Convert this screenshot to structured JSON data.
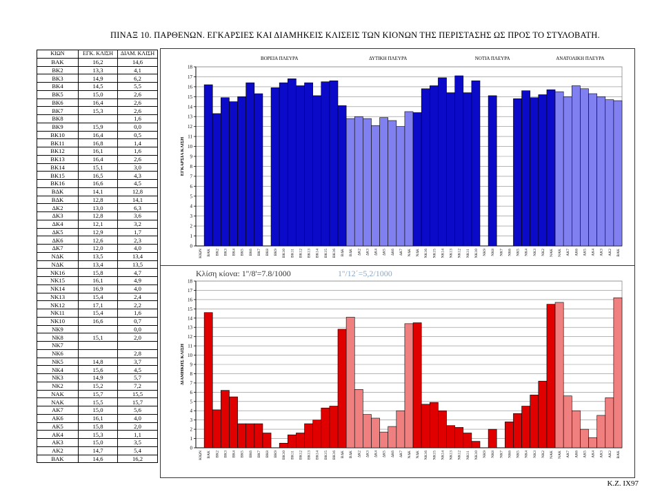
{
  "title": "ΠΙΝΑΞ 10. ΠΑΡΘΕΝΩΝ. ΕΓΚΑΡΣΙΕΣ ΚΑΙ ΔΙΑΜΗΚΕΙΣ ΚΛΙΣΕΙΣ ΤΩΝ ΚΙΟΝΩΝ ΤΗΣ ΠΕΡΙΣΤΑΣΗΣ ΩΣ ΠΡΟΣ ΤΟ ΣΤΥΛΟΒΑΤΗ.",
  "footer": "K.Z. IX97",
  "table": {
    "headers": [
      "ΚΙΩΝ",
      "ΕΓΚ. ΚΛΙΣΗ",
      "ΔΙΑΜ. ΚΛΙΣΗ"
    ],
    "rows": [
      [
        "ΒΑΚ",
        "16,2",
        "14,6"
      ],
      [
        "ΒΚ2",
        "13,3",
        "4,1"
      ],
      [
        "ΒΚ3",
        "14,9",
        "6,2"
      ],
      [
        "ΒΚ4",
        "14,5",
        "5,5"
      ],
      [
        "ΒΚ5",
        "15,0",
        "2,6"
      ],
      [
        "ΒΚ6",
        "16,4",
        "2,6"
      ],
      [
        "ΒΚ7",
        "15,3",
        "2,6"
      ],
      [
        "ΒΚ8",
        "",
        "1,6"
      ],
      [
        "ΒΚ9",
        "15,9",
        "0,0"
      ],
      [
        "ΒΚ10",
        "16,4",
        "0,5"
      ],
      [
        "ΒΚ11",
        "16,8",
        "1,4"
      ],
      [
        "ΒΚ12",
        "16,1",
        "1,6"
      ],
      [
        "ΒΚ13",
        "16,4",
        "2,6"
      ],
      [
        "ΒΚ14",
        "15,1",
        "3,0"
      ],
      [
        "ΒΚ15",
        "16,5",
        "4,3"
      ],
      [
        "ΒΚ16",
        "16,6",
        "4,5"
      ],
      [
        "ΒΔΚ",
        "14,1",
        "12,8"
      ],
      [
        "ΒΔΚ",
        "12,8",
        "14,1"
      ],
      [
        "ΔΚ2",
        "13,0",
        "6,3"
      ],
      [
        "ΔΚ3",
        "12,8",
        "3,6"
      ],
      [
        "ΔΚ4",
        "12,1",
        "3,2"
      ],
      [
        "ΔΚ5",
        "12,9",
        "1,7"
      ],
      [
        "ΔΚ6",
        "12,6",
        "2,3"
      ],
      [
        "ΔΚ7",
        "12,0",
        "4,0"
      ],
      [
        "ΝΔΚ",
        "13,5",
        "13,4"
      ],
      [
        "ΝΔΚ",
        "13,4",
        "13,5"
      ],
      [
        "ΝΚ16",
        "15,8",
        "4,7"
      ],
      [
        "ΝΚ15",
        "16,1",
        "4,9"
      ],
      [
        "ΝΚ14",
        "16,9",
        "4,0"
      ],
      [
        "ΝΚ13",
        "15,4",
        "2,4"
      ],
      [
        "ΝΚ12",
        "17,1",
        "2,2"
      ],
      [
        "ΝΚ11",
        "15,4",
        "1,6"
      ],
      [
        "ΝΚ10",
        "16,6",
        "0,7"
      ],
      [
        "ΝΚ9",
        "",
        "0,0"
      ],
      [
        "ΝΚ8",
        "15,1",
        "2,0"
      ],
      [
        "ΝΚ7",
        "",
        ""
      ],
      [
        "ΝΚ6",
        "",
        "2,8"
      ],
      [
        "ΝΚ5",
        "14,8",
        "3,7"
      ],
      [
        "ΝΚ4",
        "15,6",
        "4,5"
      ],
      [
        "ΝΚ3",
        "14,9",
        "5,7"
      ],
      [
        "ΝΚ2",
        "15,2",
        "7,2"
      ],
      [
        "ΝΑΚ",
        "15,7",
        "15,5"
      ],
      [
        "ΝΑΚ",
        "15,5",
        "15,7"
      ],
      [
        "ΑΚ7",
        "15,0",
        "5,6"
      ],
      [
        "ΑΚ6",
        "16,1",
        "4,0"
      ],
      [
        "ΑΚ5",
        "15,8",
        "2,0"
      ],
      [
        "ΑΚ4",
        "15,3",
        "1,1"
      ],
      [
        "ΑΚ3",
        "15,0",
        "3,5"
      ],
      [
        "ΑΚ2",
        "14,7",
        "5,4"
      ],
      [
        "ΒΑΚ",
        "14,6",
        "16,2"
      ]
    ]
  },
  "chart_data": [
    {
      "type": "bar",
      "ylabel": "ΕΓΚΑΡΣΙΑ ΚΛΙΣΗ",
      "ylim": [
        0,
        18
      ],
      "yticks": [
        0,
        1,
        2,
        3,
        4,
        5,
        6,
        7,
        8,
        9,
        10,
        11,
        12,
        13,
        14,
        15,
        16,
        17,
        18
      ],
      "grid": true,
      "section_labels": [
        "ΒΟΡΕΙΑ ΠΛΕΥΡΑ",
        "ΔΥΤΙΚΗ ΠΛΕΥΡΑ",
        "ΝΟΤΙΑ ΠΛΕΥΡΑ",
        "ΑΝΑΤΟΛΙΚΗ ΠΛΕΥΡΑ"
      ],
      "categories": [
        "ΚΙΩΝ",
        "ΒΑΚ",
        "ΒΚ2",
        "ΒΚ3",
        "ΒΚ4",
        "ΒΚ5",
        "ΒΚ6",
        "ΒΚ7",
        "ΒΚ8",
        "ΒΚ9",
        "ΒΚ10",
        "ΒΚ11",
        "ΒΚ12",
        "ΒΚ13",
        "ΒΚ14",
        "ΒΚ15",
        "ΒΚ16",
        "ΒΔΚ",
        "ΒΔΚ",
        "ΔΚ2",
        "ΔΚ3",
        "ΔΚ4",
        "ΔΚ5",
        "ΔΚ6",
        "ΔΚ7",
        "ΝΔΚ",
        "ΝΔΚ",
        "ΝΚ16",
        "ΝΚ15",
        "ΝΚ14",
        "ΝΚ13",
        "ΝΚ12",
        "ΝΚ11",
        "ΝΚ10",
        "ΝΚ9",
        "ΝΚ8",
        "ΝΚ7",
        "ΝΚ6",
        "ΝΚ5",
        "ΝΚ4",
        "ΝΚ3",
        "ΝΚ2",
        "ΝΑΚ",
        "ΝΑΚ",
        "ΑΚ7",
        "ΑΚ6",
        "ΑΚ5",
        "ΑΚ4",
        "ΑΚ3",
        "ΑΚ2",
        "ΒΑΚ"
      ],
      "values": [
        null,
        16.2,
        13.3,
        14.9,
        14.5,
        15.0,
        16.4,
        15.3,
        null,
        15.9,
        16.4,
        16.8,
        16.1,
        16.4,
        15.1,
        16.5,
        16.6,
        14.1,
        12.8,
        13.0,
        12.8,
        12.1,
        12.9,
        12.6,
        12.0,
        13.5,
        13.4,
        15.8,
        16.1,
        16.9,
        15.4,
        17.1,
        15.4,
        16.6,
        null,
        15.1,
        null,
        null,
        14.8,
        15.6,
        14.9,
        15.2,
        15.7,
        15.5,
        15.0,
        16.1,
        15.8,
        15.3,
        15.0,
        14.7,
        14.6
      ],
      "light": [
        false,
        false,
        false,
        false,
        false,
        false,
        false,
        false,
        false,
        false,
        false,
        false,
        false,
        false,
        false,
        false,
        false,
        false,
        true,
        true,
        true,
        true,
        true,
        true,
        true,
        true,
        false,
        false,
        false,
        false,
        false,
        false,
        false,
        false,
        false,
        false,
        false,
        false,
        false,
        false,
        false,
        false,
        false,
        true,
        true,
        true,
        true,
        true,
        true,
        true,
        true
      ],
      "colors": {
        "dark": "#0a0ac8",
        "light": "#8080f0"
      }
    },
    {
      "type": "bar",
      "ylabel": "ΔΙΑΜΗΚΗΣ ΚΛΙΣΗ",
      "annotation": "Κλίση κίονα: 1''/8'=7.8/1000",
      "annotation2": "1''/12΄=5,2/1000",
      "ylim": [
        0,
        18
      ],
      "yticks": [
        0,
        1,
        2,
        3,
        4,
        5,
        6,
        7,
        8,
        9,
        10,
        11,
        12,
        13,
        14,
        15,
        16,
        17,
        18
      ],
      "grid": true,
      "categories": [
        "ΚΙΩΝ",
        "ΒΑΚ",
        "ΒΚ2",
        "ΒΚ3",
        "ΒΚ4",
        "ΒΚ5",
        "ΒΚ6",
        "ΒΚ7",
        "ΒΚ8",
        "ΒΚ9",
        "ΒΚ10",
        "ΒΚ11",
        "ΒΚ12",
        "ΒΚ13",
        "ΒΚ14",
        "ΒΚ15",
        "ΒΚ16",
        "ΒΔΚ",
        "ΒΔΚ",
        "ΔΚ2",
        "ΔΚ3",
        "ΔΚ4",
        "ΔΚ5",
        "ΔΚ6",
        "ΔΚ7",
        "ΝΔΚ",
        "ΝΔΚ",
        "ΝΚ16",
        "ΝΚ15",
        "ΝΚ14",
        "ΝΚ13",
        "ΝΚ12",
        "ΝΚ11",
        "ΝΚ10",
        "ΝΚ9",
        "ΝΚ8",
        "ΝΚ7",
        "ΝΚ6",
        "ΝΚ5",
        "ΝΚ4",
        "ΝΚ3",
        "ΝΚ2",
        "ΝΑΚ",
        "ΝΑΚ",
        "ΑΚ7",
        "ΑΚ6",
        "ΑΚ5",
        "ΑΚ4",
        "ΑΚ3",
        "ΑΚ2",
        "ΒΑΚ"
      ],
      "values": [
        null,
        14.6,
        4.1,
        6.2,
        5.5,
        2.6,
        2.6,
        2.6,
        1.6,
        0.0,
        0.5,
        1.4,
        1.6,
        2.6,
        3.0,
        4.3,
        4.5,
        12.8,
        14.1,
        6.3,
        3.6,
        3.2,
        1.7,
        2.3,
        4.0,
        13.4,
        13.5,
        4.7,
        4.9,
        4.0,
        2.4,
        2.2,
        1.6,
        0.7,
        0.0,
        2.0,
        null,
        2.8,
        3.7,
        4.5,
        5.7,
        7.2,
        15.5,
        15.7,
        5.6,
        4.0,
        2.0,
        1.1,
        3.5,
        5.4,
        16.2
      ],
      "light": [
        false,
        false,
        false,
        false,
        false,
        false,
        false,
        false,
        false,
        false,
        false,
        false,
        false,
        false,
        false,
        false,
        false,
        false,
        true,
        true,
        true,
        true,
        true,
        true,
        true,
        true,
        false,
        false,
        false,
        false,
        false,
        false,
        false,
        false,
        false,
        false,
        false,
        false,
        false,
        false,
        false,
        false,
        false,
        true,
        true,
        true,
        true,
        true,
        true,
        true,
        true
      ],
      "colors": {
        "dark": "#e00000",
        "light": "#f08080"
      }
    }
  ]
}
